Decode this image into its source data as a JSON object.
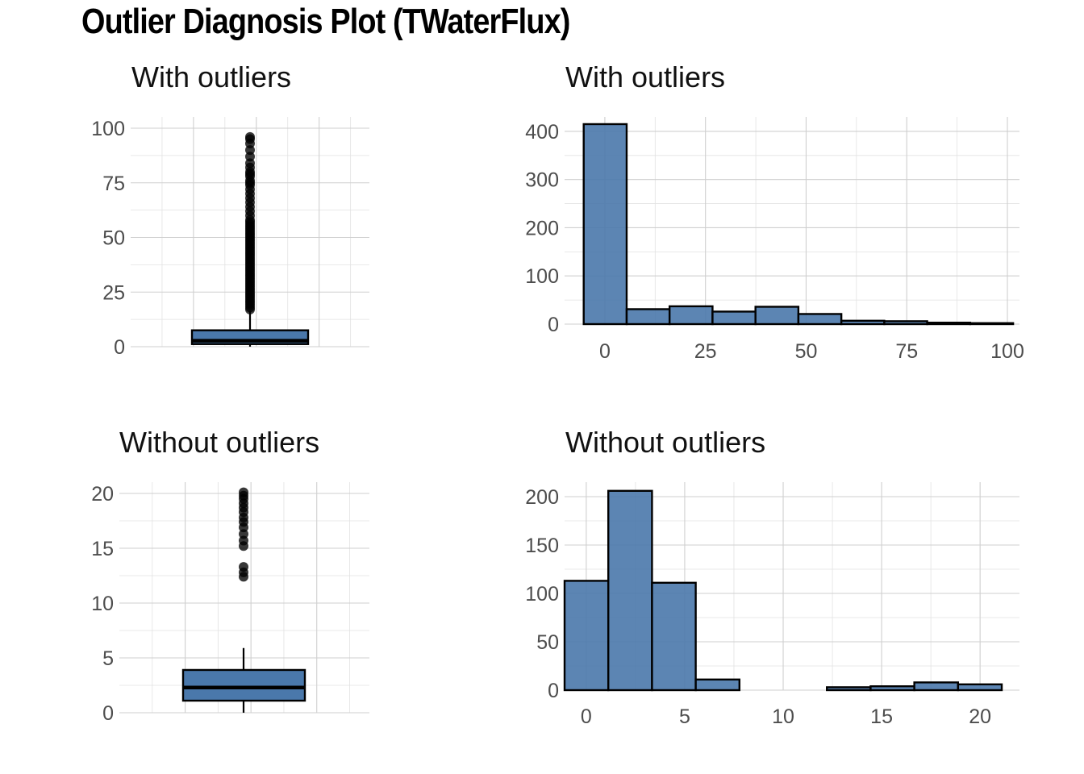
{
  "title": "Outlier Diagnosis Plot (TWaterFlux)",
  "colors": {
    "fill": "#4a78ab",
    "stroke": "#000000",
    "grid": "#cfcfcf"
  },
  "chart_data": [
    {
      "id": "box-with",
      "type": "box",
      "title": "With outliers",
      "ylim": [
        0,
        100
      ],
      "yticks": [
        0,
        25,
        50,
        75,
        100
      ],
      "stats": {
        "min": 0,
        "q1": 1.2,
        "median": 2.7,
        "q3": 7.5,
        "whisker_high": 16.5
      },
      "outliers": [
        17,
        18,
        19,
        20,
        21,
        22,
        23,
        24,
        25,
        26,
        27,
        28,
        29,
        30,
        31,
        32,
        33,
        34,
        35,
        36,
        37,
        38,
        39,
        40,
        41,
        42,
        43,
        44,
        45,
        46,
        47,
        48,
        49,
        50,
        51,
        52,
        53,
        54,
        55,
        56,
        57,
        58,
        60,
        62,
        64,
        66,
        68,
        70,
        72,
        74,
        75,
        76,
        78,
        79,
        80,
        82,
        84,
        87,
        90,
        93,
        95,
        96
      ]
    },
    {
      "id": "hist-with",
      "type": "histogram",
      "title": "With outliers",
      "xlim": [
        -10,
        103
      ],
      "ylim": [
        0,
        430
      ],
      "xticks": [
        0,
        25,
        50,
        75,
        100
      ],
      "yticks": [
        0,
        100,
        200,
        300,
        400
      ],
      "bins": [
        {
          "x0": -5.25,
          "x1": 5.42,
          "count": 415
        },
        {
          "x0": 5.42,
          "x1": 16.08,
          "count": 31
        },
        {
          "x0": 16.08,
          "x1": 26.75,
          "count": 37
        },
        {
          "x0": 26.75,
          "x1": 37.42,
          "count": 26
        },
        {
          "x0": 37.42,
          "x1": 48.08,
          "count": 36
        },
        {
          "x0": 48.08,
          "x1": 58.75,
          "count": 21
        },
        {
          "x0": 58.75,
          "x1": 69.42,
          "count": 7
        },
        {
          "x0": 69.42,
          "x1": 80.08,
          "count": 6
        },
        {
          "x0": 80.08,
          "x1": 90.75,
          "count": 3
        },
        {
          "x0": 90.75,
          "x1": 101.42,
          "count": 2
        }
      ]
    },
    {
      "id": "box-without",
      "type": "box",
      "title": "Without outliers",
      "ylim": [
        0,
        20
      ],
      "yticks": [
        0,
        5,
        10,
        15,
        20
      ],
      "stats": {
        "min": 0,
        "q1": 1.1,
        "median": 2.3,
        "q3": 3.9,
        "whisker_high": 5.9
      },
      "outliers": [
        12.4,
        12.8,
        13.3,
        15.2,
        15.7,
        16.3,
        16.9,
        17.4,
        17.8,
        18.3,
        18.7,
        19.1,
        19.5,
        19.8,
        20.1
      ]
    },
    {
      "id": "hist-without",
      "type": "histogram",
      "title": "Without outliers",
      "xlim": [
        -1.1,
        22.0
      ],
      "ylim": [
        0,
        215
      ],
      "xticks": [
        0,
        5,
        10,
        15,
        20
      ],
      "yticks": [
        0,
        50,
        100,
        150,
        200
      ],
      "bins": [
        {
          "x0": -1.1,
          "x1": 1.12,
          "count": 113
        },
        {
          "x0": 1.12,
          "x1": 3.34,
          "count": 206
        },
        {
          "x0": 3.34,
          "x1": 5.56,
          "count": 111
        },
        {
          "x0": 5.56,
          "x1": 7.78,
          "count": 11
        },
        {
          "x0": 7.78,
          "x1": 10.0,
          "count": 0
        },
        {
          "x0": 10.0,
          "x1": 12.22,
          "count": 0
        },
        {
          "x0": 12.22,
          "x1": 14.44,
          "count": 3
        },
        {
          "x0": 14.44,
          "x1": 16.66,
          "count": 4
        },
        {
          "x0": 16.66,
          "x1": 18.88,
          "count": 8
        },
        {
          "x0": 18.88,
          "x1": 21.1,
          "count": 6
        }
      ]
    }
  ]
}
